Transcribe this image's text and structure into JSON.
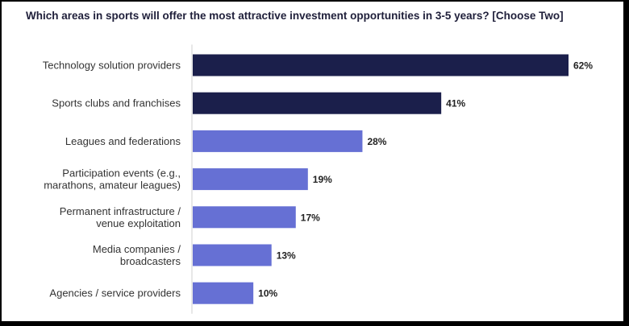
{
  "chart_data": {
    "type": "bar",
    "orientation": "horizontal",
    "title": "Which areas in sports will offer the most attractive investment opportunities in 3-5 years? [Choose Two]",
    "categories": [
      [
        "Technology solution providers"
      ],
      [
        "Sports clubs and franchises"
      ],
      [
        "Leagues and federations"
      ],
      [
        "Participation events (e.g.,",
        "marathons, amateur leagues)"
      ],
      [
        "Permanent infrastructure /",
        "venue exploitation"
      ],
      [
        "Media companies /",
        "broadcasters"
      ],
      [
        "Agencies / service providers"
      ]
    ],
    "values": [
      62,
      41,
      28,
      19,
      17,
      13,
      10
    ],
    "value_labels": [
      "62%",
      "41%",
      "28%",
      "19%",
      "17%",
      "13%",
      "10%"
    ],
    "bar_colors": [
      "#1b1f4b",
      "#1b1f4b",
      "#6670d4",
      "#6670d4",
      "#6670d4",
      "#6670d4",
      "#6670d4"
    ],
    "xlim": [
      0,
      62
    ],
    "grid": false,
    "legend": "none"
  }
}
